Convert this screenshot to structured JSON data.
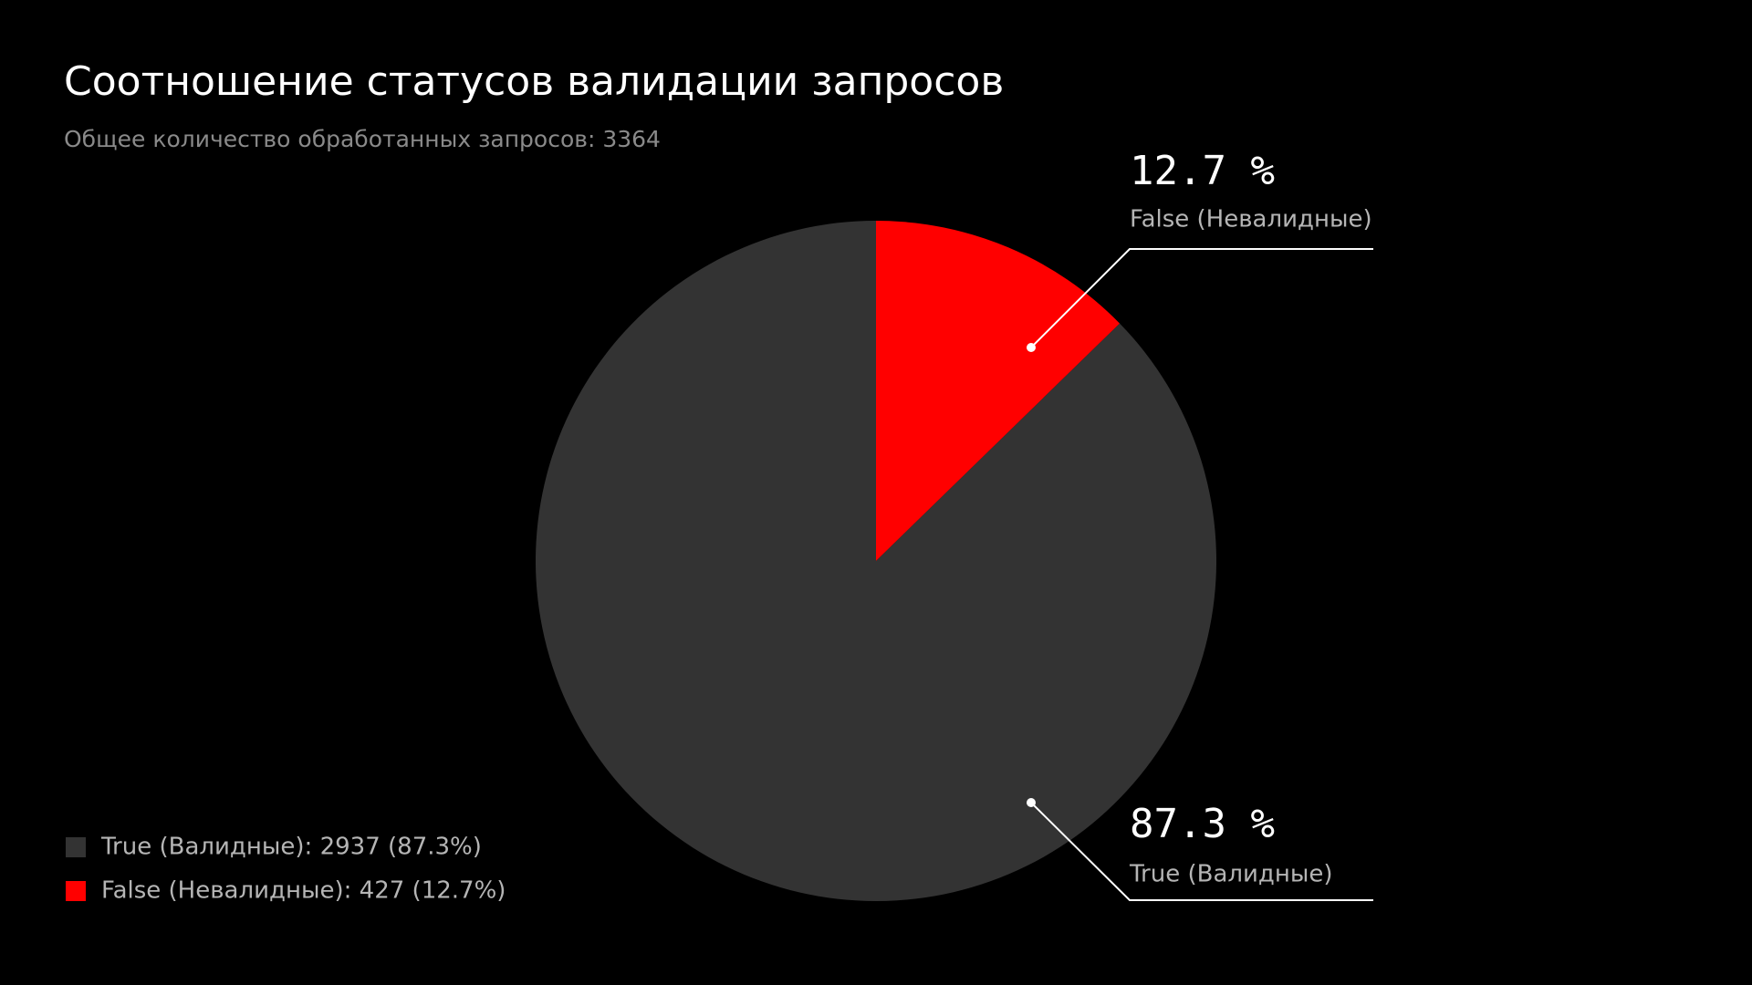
{
  "chart_data": {
    "type": "pie",
    "title": "Соотношение статусов валидации запросов",
    "subtitle": "Общее количество обработанных запросов: 3364",
    "categories": [
      "True (Валидные)",
      "False (Невалидные)"
    ],
    "values": [
      87.3,
      12.7
    ],
    "value_labels": [
      "87.3 %",
      "12.7 %"
    ],
    "colors": [
      "#333333",
      "#ff0000"
    ],
    "legend_labels": [
      "True (Валидные): 2937 (87.3%)",
      "False (Невалидные): 427 (12.7%)"
    ]
  }
}
